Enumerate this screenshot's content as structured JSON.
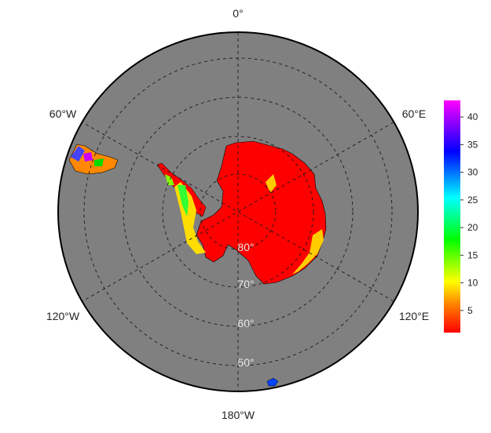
{
  "map": {
    "projection": "south-polar-stereographic",
    "ocean_color": "#808080",
    "border_color": "#000000",
    "land_color": "#ff0000",
    "gridline_style": "dashed",
    "longitude_labels": [
      "0°",
      "60°E",
      "120°E",
      "180°W",
      "120°W",
      "60°W"
    ],
    "latitude_labels": [
      "80°",
      "70°",
      "60°",
      "50°"
    ]
  },
  "colorbar": {
    "min": 1,
    "max": 43,
    "ticks": [
      "5",
      "10",
      "15",
      "20",
      "25",
      "30",
      "35",
      "40"
    ],
    "tick_values": [
      5,
      10,
      15,
      20,
      25,
      30,
      35,
      40
    ],
    "colors": [
      "#ff0000",
      "#ffff00",
      "#00ff00",
      "#00ffff",
      "#0000ff",
      "#ff00ff"
    ]
  }
}
